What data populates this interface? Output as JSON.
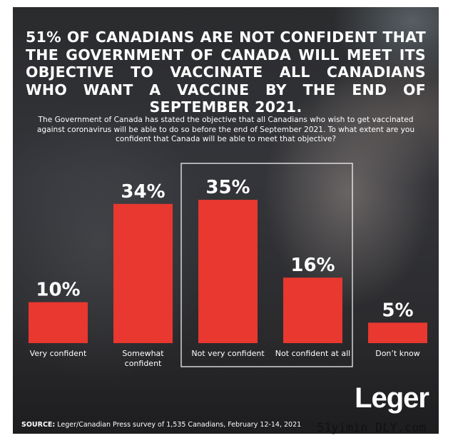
{
  "title": "51% OF CANADIANS ARE NOT CONFIDENT THAT THE GOVERNMENT OF CANADA WILL MEET ITS OBJECTIVE TO VACCINATE ALL CANADIANS WHO WANT A VACCINE BY THE END OF SEPTEMBER 2021.",
  "question": "The Government of Canada has stated the objective that all Canadians who wish to get vaccinated against coronavirus will be able to do so before the end of September 2021. To what extent are you confident that Canada will be able to meet that objective?",
  "chart_data": {
    "type": "bar",
    "categories": [
      "Very confident",
      "Somewhat confident",
      "Not very confident",
      "Not confident at all",
      "Don’t know"
    ],
    "values": [
      10,
      34,
      35,
      16,
      5
    ],
    "value_labels": [
      "10%",
      "34%",
      "35%",
      "16%",
      "5%"
    ],
    "unit": "%",
    "highlighted_categories": [
      "Not very confident",
      "Not confident at all"
    ],
    "bar_color": "#e8382f",
    "grid": false,
    "axes_visible": false
  },
  "logo_text": "Leger",
  "source": {
    "label": "SOURCE:",
    "text": "Leger/Canadian Press survey of 1,535 Canadians, February 12-14, 2021"
  },
  "watermark": "51yimin DLY.com",
  "colors": {
    "background": "#2c2c2f",
    "bar": "#e8382f",
    "text": "#ffffff",
    "highlight_box": "#ffffff"
  }
}
